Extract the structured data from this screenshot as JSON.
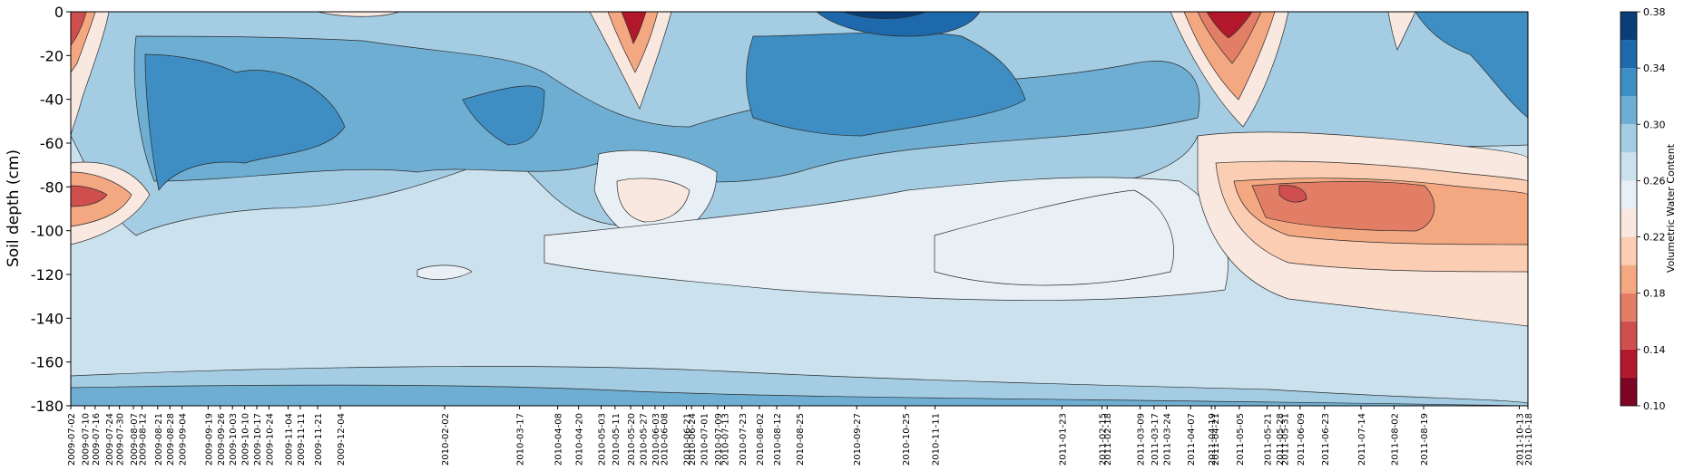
{
  "chart_data": {
    "type": "contour",
    "ylabel": "Soil depth (cm)",
    "colorbar_label": "Volumetric Water Content",
    "ylim": [
      -180,
      0
    ],
    "y_ticks": [
      0,
      -20,
      -40,
      -60,
      -80,
      -100,
      -120,
      -140,
      -160,
      -180
    ],
    "x_range": [
      "2009-07-02",
      "2011-10-18"
    ],
    "x_ticks": [
      "2009-07-02",
      "2009-07-10",
      "2009-07-16",
      "2009-07-24",
      "2009-07-30",
      "2009-08-07",
      "2009-08-12",
      "2009-08-21",
      "2009-08-28",
      "2009-09-04",
      "2009-09-19",
      "2009-09-26",
      "2009-10-03",
      "2009-10-10",
      "2009-10-17",
      "2009-10-24",
      "2009-11-04",
      "2009-11-11",
      "2009-11-21",
      "2009-12-04",
      "2010-02-02",
      "2010-03-17",
      "2010-04-08",
      "2010-04-20",
      "2010-05-03",
      "2010-05-11",
      "2010-05-20",
      "2010-05-27",
      "2010-06-03",
      "2010-06-08",
      "2010-06-21",
      "2010-06-24",
      "2010-07-01",
      "2010-07-09",
      "2010-07-13",
      "2010-07-23",
      "2010-08-02",
      "2010-08-12",
      "2010-08-25",
      "2010-09-27",
      "2010-10-25",
      "2010-11-11",
      "2011-01-23",
      "2011-02-15",
      "2011-02-18",
      "2011-03-09",
      "2011-03-17",
      "2011-03-24",
      "2011-04-07",
      "2011-04-19",
      "2011-04-21",
      "2011-05-05",
      "2011-05-21",
      "2011-05-28",
      "2011-05-31",
      "2011-06-09",
      "2011-06-23",
      "2011-07-14",
      "2011-08-02",
      "2011-08-19",
      "2011-10-13",
      "2011-10-18"
    ],
    "colorbar": {
      "levels": [
        0.1,
        0.12,
        0.14,
        0.16,
        0.18,
        0.2,
        0.22,
        0.24,
        0.26,
        0.28,
        0.3,
        0.32,
        0.34,
        0.36,
        0.38
      ],
      "tick_labels": [
        "0.10",
        "0.14",
        "0.18",
        "0.22",
        "0.26",
        "0.30",
        "0.34",
        "0.38"
      ],
      "colors": [
        "#7d0424",
        "#b2182b",
        "#cf4f4e",
        "#e27d66",
        "#f4a882",
        "#fbcdb3",
        "#f8e8e0",
        "#e8f0f5",
        "#cbe1ee",
        "#a4cde3",
        "#6eaed2",
        "#3e8dc3",
        "#1e69ab",
        "#0b3e79"
      ]
    },
    "grid": false
  }
}
